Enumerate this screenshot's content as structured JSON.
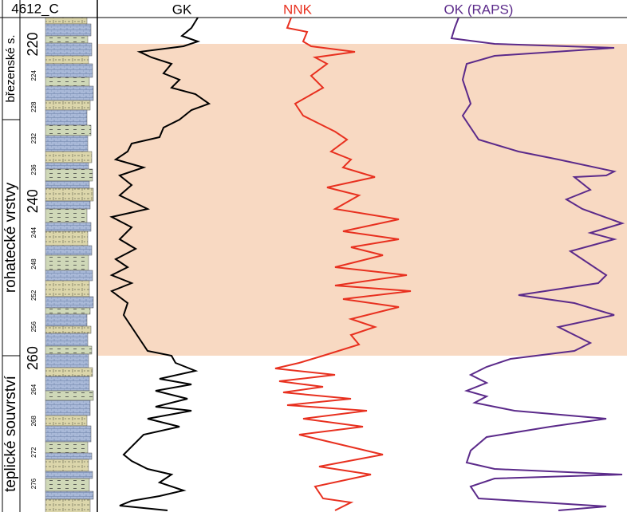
{
  "header": {
    "well": "4612_C",
    "curves": [
      {
        "name": "GK",
        "color": "#000000"
      },
      {
        "name": "NNK",
        "color": "#e8301f"
      },
      {
        "name": "OK (RAPS)",
        "color": "#5b2a8a"
      }
    ]
  },
  "formations": [
    "březenské s.",
    "rohatecké vrstvy",
    "teplické souvrství"
  ],
  "depth": {
    "ylim": [
      216.6,
      279.6
    ],
    "major": [
      220,
      240,
      260
    ],
    "minor": [
      224,
      228,
      232,
      236,
      244,
      248,
      252,
      256,
      264,
      268,
      272,
      276
    ]
  }
}
